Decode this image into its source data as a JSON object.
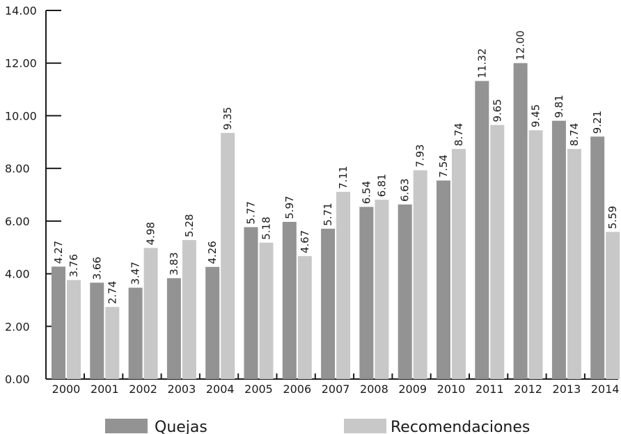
{
  "chart_data": {
    "type": "bar",
    "categories": [
      "2000",
      "2001",
      "2002",
      "2003",
      "2004",
      "2005",
      "2006",
      "2007",
      "2008",
      "2009",
      "2010",
      "2011",
      "2012",
      "2013",
      "2014"
    ],
    "series": [
      {
        "name": "Quejas",
        "color": "#939393",
        "values": [
          4.27,
          3.66,
          3.47,
          3.83,
          4.26,
          5.77,
          5.97,
          5.71,
          6.54,
          6.63,
          7.54,
          11.32,
          12.0,
          9.81,
          9.21
        ],
        "labels": [
          "4.27",
          "3.66",
          "3.47",
          "3.83",
          "4.26",
          "5.77",
          "5.97",
          "5.71",
          "6.54",
          "6.63",
          "7.54",
          "11.32",
          "12.00",
          "9.81",
          "9.21"
        ]
      },
      {
        "name": "Recomendaciones",
        "color": "#c8c8c8",
        "values": [
          3.76,
          2.74,
          4.98,
          5.28,
          9.35,
          5.18,
          4.67,
          7.11,
          6.81,
          7.93,
          8.74,
          9.65,
          9.45,
          8.74,
          5.59
        ],
        "labels": [
          "3.76",
          "2.74",
          "4.98",
          "5.28",
          "9.35",
          "5.18",
          "4.67",
          "7.11",
          "6.81",
          "7.93",
          "8.74",
          "9.65",
          "9.45",
          "8.74",
          "5.59"
        ]
      }
    ],
    "yticks": [
      "0.00",
      "2.00",
      "4.00",
      "6.00",
      "8.00",
      "10.00",
      "12.00",
      "14.00"
    ],
    "ylim": [
      0,
      14
    ],
    "grid": false,
    "legend": "bottom"
  }
}
